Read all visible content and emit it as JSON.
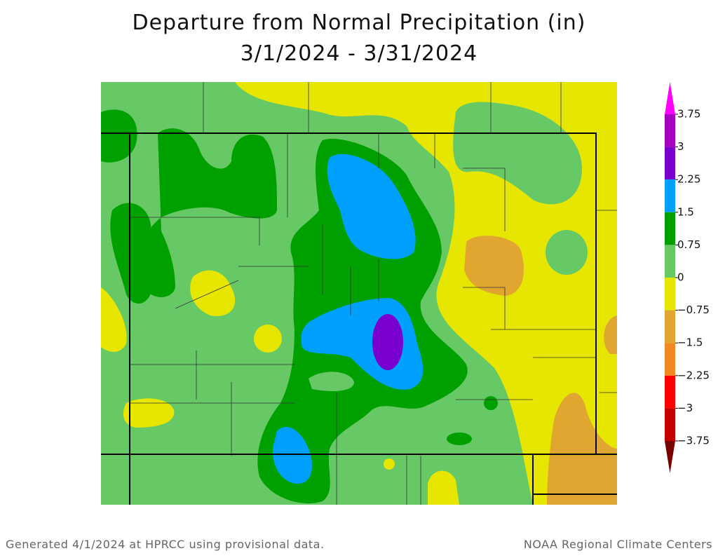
{
  "map": {
    "title": "Departure from Normal Precipitation (in)",
    "subtitle": "3/1/2024 - 3/31/2024",
    "legend": {
      "ticks": [
        3.75,
        3,
        2.25,
        1.5,
        0.75,
        0,
        {
          "value": -0.75,
          "label": "−0.75"
        },
        {
          "value": -1.5,
          "label": "−1.5"
        },
        {
          "value": -2.25,
          "label": "−2.25"
        },
        {
          "value": -3,
          "label": "−3"
        },
        {
          "value": -3.75,
          "label": "−3.75"
        }
      ],
      "colors": [
        "#ff00ff",
        "#a800c0",
        "#7a00d0",
        "#00a0ff",
        "#00a000",
        "#66c966",
        "#e6e600",
        "#e0a630",
        "#f08a20",
        "#ff0000",
        "#c40000",
        "#7a0000"
      ]
    },
    "footer_left": "Generated 4/1/2024 at HPRCC using provisional data.",
    "footer_right": "NOAA Regional Climate Centers"
  }
}
